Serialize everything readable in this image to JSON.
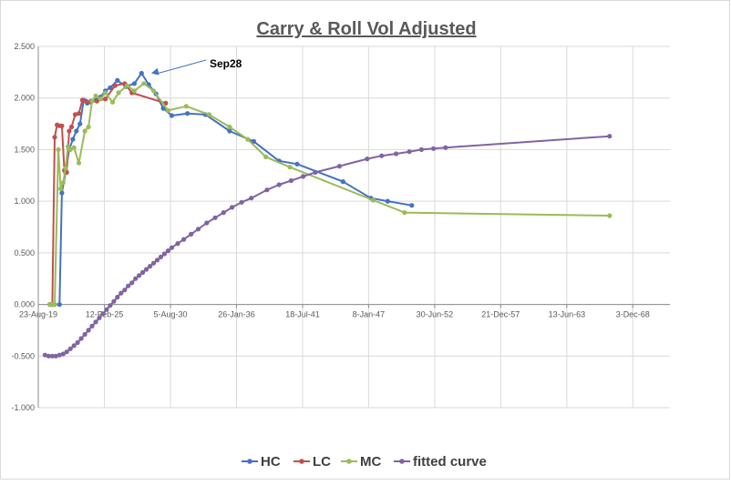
{
  "chart_data": {
    "type": "line",
    "title": "Carry & Roll Vol Adjusted",
    "xlabel": "",
    "ylabel": "",
    "ylim": [
      -1.0,
      2.5
    ],
    "y_ticks": [
      "2.500",
      "2.000",
      "1.500",
      "1.000",
      "0.500",
      "0.000",
      "-0.500",
      "-1.000"
    ],
    "y_tick_values": [
      2.5,
      2.0,
      1.5,
      1.0,
      0.5,
      0.0,
      -0.5,
      -1.0
    ],
    "x_ticks": [
      "23-Aug-19",
      "12-Feb-25",
      "5-Aug-30",
      "26-Jan-36",
      "18-Jul-41",
      "8-Jan-47",
      "30-Jun-52",
      "21-Dec-57",
      "13-Jun-63",
      "3-Dec-68"
    ],
    "x_tick_values": [
      2019.64,
      2025.12,
      2030.6,
      2036.07,
      2041.55,
      2047.02,
      2052.5,
      2057.97,
      2063.45,
      2068.92
    ],
    "xlim": [
      2019.64,
      2072.0
    ],
    "grid": true,
    "legend_position": "bottom",
    "annotation": {
      "text": "Sep28",
      "x": 2028.7,
      "y": 2.24
    },
    "series": [
      {
        "name": "HC",
        "color": "#4472C4",
        "x": [
          2020.6,
          2020.8,
          2021.0,
          2021.4,
          2021.6,
          2021.9,
          2022.2,
          2022.5,
          2022.8,
          2023.1,
          2023.4,
          2023.7,
          2024.0,
          2024.4,
          2024.8,
          2025.2,
          2025.6,
          2026.2,
          2026.9,
          2027.6,
          2028.2,
          2028.8,
          2029.4,
          2030.0,
          2030.7,
          2032.0,
          2033.5,
          2035.5,
          2037.5,
          2039.6,
          2041.1,
          2044.9,
          2047.2,
          2048.6,
          2050.6
        ],
        "y": [
          0.0,
          0.0,
          0.0,
          0.0,
          1.08,
          1.28,
          1.5,
          1.6,
          1.68,
          1.75,
          1.98,
          1.95,
          1.97,
          1.98,
          2.01,
          2.07,
          2.1,
          2.17,
          2.11,
          2.14,
          2.24,
          2.13,
          2.04,
          1.9,
          1.83,
          1.85,
          1.84,
          1.68,
          1.58,
          1.39,
          1.36,
          1.19,
          1.03,
          1.0,
          0.96
        ]
      },
      {
        "name": "LC",
        "color": "#C0504D",
        "x": [
          2020.6,
          2020.8,
          2021.0,
          2021.2,
          2021.4,
          2021.6,
          2021.8,
          2022.0,
          2022.2,
          2022.4,
          2022.7,
          2023.0,
          2023.3,
          2023.6,
          2024.0,
          2024.5,
          2025.2,
          2026.0,
          2026.8,
          2027.4,
          2030.2
        ],
        "y": [
          0.0,
          0.0,
          1.62,
          1.74,
          1.73,
          1.73,
          1.3,
          1.28,
          1.68,
          1.72,
          1.84,
          1.85,
          1.98,
          1.97,
          1.96,
          1.97,
          1.99,
          2.12,
          2.14,
          2.05,
          1.95
        ]
      },
      {
        "name": "MC",
        "color": "#9BBB59",
        "x": [
          2020.6,
          2020.8,
          2021.0,
          2021.3,
          2021.5,
          2021.7,
          2021.9,
          2022.1,
          2022.3,
          2022.6,
          2023.0,
          2023.5,
          2023.8,
          2024.1,
          2024.4,
          2024.8,
          2025.2,
          2025.8,
          2026.3,
          2027.0,
          2027.6,
          2028.4,
          2029.2,
          2030.4,
          2031.9,
          2033.8,
          2035.5,
          2037.0,
          2038.5,
          2040.5,
          2047.4,
          2050.0,
          2067.0
        ],
        "y": [
          0.0,
          0.0,
          0.0,
          1.5,
          1.12,
          1.18,
          1.32,
          1.53,
          1.5,
          1.52,
          1.37,
          1.68,
          1.72,
          1.97,
          2.02,
          1.99,
          2.05,
          1.96,
          2.05,
          2.12,
          2.07,
          2.14,
          2.07,
          1.88,
          1.92,
          1.84,
          1.72,
          1.6,
          1.43,
          1.33,
          1.01,
          0.89,
          0.86
        ]
      },
      {
        "name": "fitted curve",
        "color": "#8064A2",
        "x": [
          2020.2,
          2020.5,
          2020.8,
          2021.1,
          2021.4,
          2021.7,
          2022.0,
          2022.3,
          2022.6,
          2022.9,
          2023.2,
          2023.5,
          2023.8,
          2024.1,
          2024.4,
          2024.7,
          2025.0,
          2025.3,
          2025.6,
          2025.9,
          2026.2,
          2026.5,
          2026.8,
          2027.1,
          2027.4,
          2027.7,
          2028.0,
          2028.3,
          2028.6,
          2028.9,
          2029.2,
          2029.5,
          2029.8,
          2030.1,
          2030.4,
          2030.7,
          2031.2,
          2031.7,
          2032.3,
          2032.9,
          2033.6,
          2034.3,
          2035.0,
          2035.7,
          2036.5,
          2037.3,
          2038.6,
          2039.6,
          2040.6,
          2041.6,
          2042.6,
          2044.6,
          2046.9,
          2048.1,
          2049.3,
          2050.4,
          2051.4,
          2052.4,
          2053.4,
          2067.0
        ],
        "y": [
          -0.49,
          -0.5,
          -0.5,
          -0.5,
          -0.49,
          -0.48,
          -0.46,
          -0.43,
          -0.4,
          -0.37,
          -0.33,
          -0.29,
          -0.25,
          -0.21,
          -0.17,
          -0.13,
          -0.09,
          -0.05,
          -0.01,
          0.03,
          0.07,
          0.11,
          0.14,
          0.18,
          0.21,
          0.25,
          0.28,
          0.31,
          0.34,
          0.37,
          0.4,
          0.43,
          0.46,
          0.49,
          0.52,
          0.55,
          0.59,
          0.63,
          0.68,
          0.73,
          0.79,
          0.84,
          0.89,
          0.94,
          0.99,
          1.03,
          1.11,
          1.16,
          1.2,
          1.24,
          1.28,
          1.34,
          1.41,
          1.44,
          1.46,
          1.48,
          1.5,
          1.51,
          1.52,
          1.63
        ]
      }
    ]
  }
}
